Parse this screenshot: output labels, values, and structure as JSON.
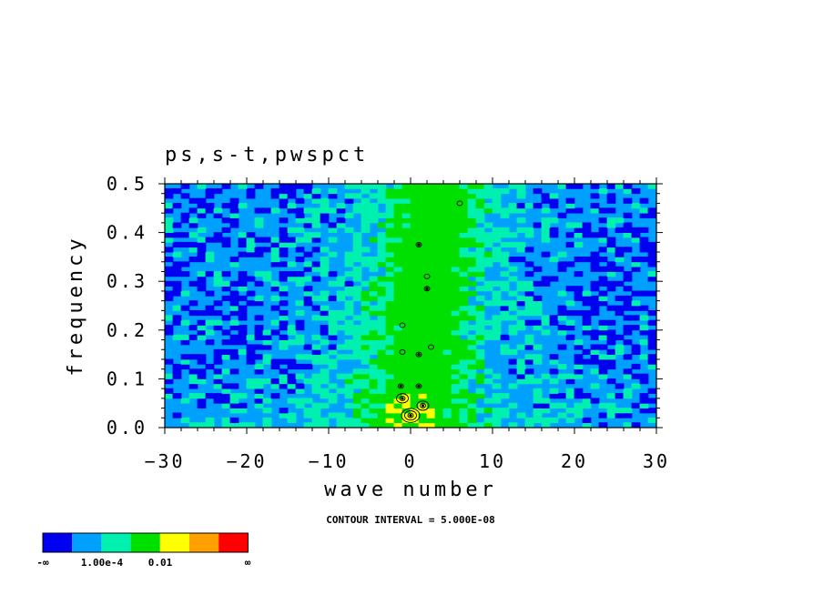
{
  "chart_data": {
    "type": "heatmap",
    "title": "ps,s-t,pwspct",
    "xlabel": "wave number",
    "ylabel": "frequency",
    "xlim": [
      -30,
      30
    ],
    "ylim": [
      0,
      0.5
    ],
    "x_ticks": [
      -30,
      -20,
      -10,
      0,
      10,
      20,
      30
    ],
    "x_tick_labels": [
      "−30",
      "−20",
      "−10",
      "0",
      "10",
      "20",
      "30"
    ],
    "y_ticks": [
      0.0,
      0.1,
      0.2,
      0.3,
      0.4,
      0.5
    ],
    "y_tick_labels": [
      "0.0",
      "0.1",
      "0.2",
      "0.3",
      "0.4",
      "0.5"
    ],
    "note": "CONTOUR INTERVAL = 5.000E-08",
    "colorbar": {
      "colors": [
        "#0000f0",
        "#00a0ff",
        "#00f0b0",
        "#00e000",
        "#ffff00",
        "#ffa000",
        "#ff0000"
      ],
      "labels": [
        "-∞",
        "1.00e-4",
        "0.01",
        "∞"
      ]
    },
    "grid": false
  }
}
